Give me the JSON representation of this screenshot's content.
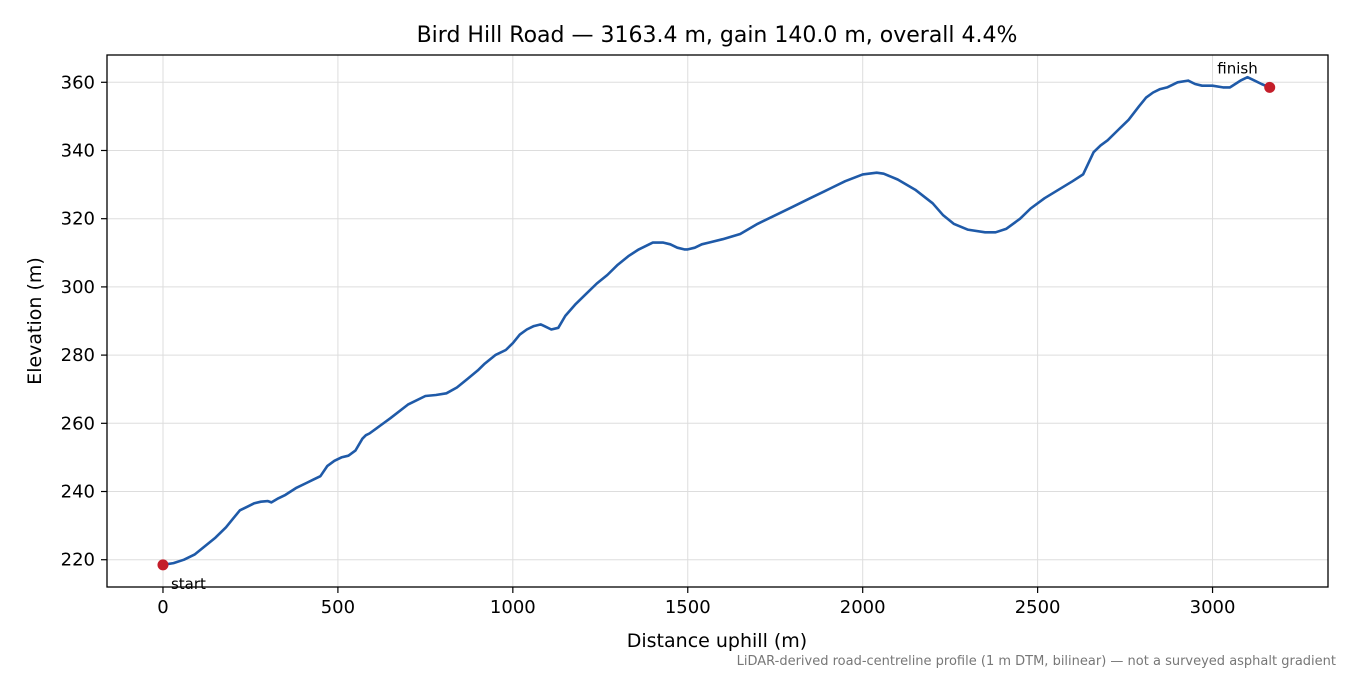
{
  "chart_data": {
    "type": "line",
    "title": "Bird Hill Road — 3163.4 m, gain 140.0 m, overall 4.4%",
    "xlabel": "Distance uphill (m)",
    "ylabel": "Elevation (m)",
    "xlim": [
      -160,
      3330
    ],
    "ylim": [
      212,
      368
    ],
    "x_ticks": [
      0,
      500,
      1000,
      1500,
      2000,
      2500,
      3000
    ],
    "x_tick_labels": [
      "0",
      "500",
      "1000",
      "1500",
      "2000",
      "2500",
      "3000"
    ],
    "y_ticks": [
      220,
      240,
      260,
      280,
      300,
      320,
      340,
      360
    ],
    "y_tick_labels": [
      "220",
      "240",
      "260",
      "280",
      "300",
      "320",
      "340",
      "360"
    ],
    "grid": true,
    "series": [
      {
        "color": "#1f5aa8",
        "x": [
          0,
          30,
          60,
          90,
          120,
          150,
          180,
          200,
          220,
          240,
          260,
          280,
          300,
          310,
          330,
          350,
          380,
          410,
          430,
          450,
          470,
          490,
          510,
          530,
          550,
          570,
          580,
          590,
          610,
          650,
          700,
          750,
          780,
          810,
          840,
          870,
          900,
          920,
          950,
          980,
          1000,
          1020,
          1040,
          1060,
          1080,
          1090,
          1110,
          1130,
          1150,
          1180,
          1210,
          1240,
          1270,
          1300,
          1330,
          1360,
          1400,
          1430,
          1450,
          1470,
          1490,
          1500,
          1520,
          1540,
          1560,
          1600,
          1650,
          1700,
          1750,
          1800,
          1850,
          1870,
          1890,
          1910,
          1950,
          2000,
          2040,
          2060,
          2100,
          2150,
          2200,
          2230,
          2260,
          2300,
          2350,
          2380,
          2410,
          2450,
          2480,
          2520,
          2560,
          2600,
          2630,
          2660,
          2680,
          2700,
          2730,
          2760,
          2790,
          2810,
          2830,
          2850,
          2870,
          2900,
          2930,
          2950,
          2970,
          3000,
          3030,
          3050,
          3080,
          3100,
          3120,
          3140,
          3163.4
        ],
        "y": [
          218.5,
          219,
          220,
          221.5,
          224,
          226.5,
          229.5,
          232,
          234.5,
          235.5,
          236.5,
          237,
          237.2,
          236.8,
          238,
          239,
          241,
          242.5,
          243.5,
          244.5,
          247.5,
          249,
          250,
          250.5,
          252,
          255.5,
          256.5,
          257,
          258.5,
          261.5,
          265.5,
          268,
          268.3,
          268.8,
          270.5,
          273,
          275.5,
          277.5,
          280,
          281.5,
          283.5,
          286,
          287.5,
          288.5,
          289,
          288.5,
          287.5,
          288,
          291.5,
          295,
          298,
          301,
          303.5,
          306.5,
          309,
          311,
          313,
          313,
          312.5,
          311.5,
          311,
          311,
          311.5,
          312.5,
          313,
          314,
          315.5,
          318.5,
          321,
          323.5,
          326,
          327,
          328,
          329,
          331,
          333,
          333.5,
          333.2,
          331.5,
          328.5,
          324.5,
          321,
          318.5,
          316.8,
          316,
          316,
          317,
          320,
          323,
          326,
          328.5,
          331,
          333,
          339.5,
          341.5,
          343,
          346,
          349,
          353,
          355.5,
          357,
          358,
          358.5,
          360,
          360.5,
          359.5,
          359,
          359,
          358.5,
          358.5,
          360.5,
          361.5,
          360.5,
          359.5,
          358.5
        ]
      }
    ],
    "markers": [
      {
        "x": 0,
        "y": 218.5,
        "label": "start",
        "color": "#c41e2a"
      },
      {
        "x": 3163.4,
        "y": 358.5,
        "label": "finish",
        "color": "#c41e2a"
      }
    ],
    "footnote": "LiDAR-derived road-centreline profile (1 m DTM, bilinear) — not a surveyed asphalt gradient"
  }
}
